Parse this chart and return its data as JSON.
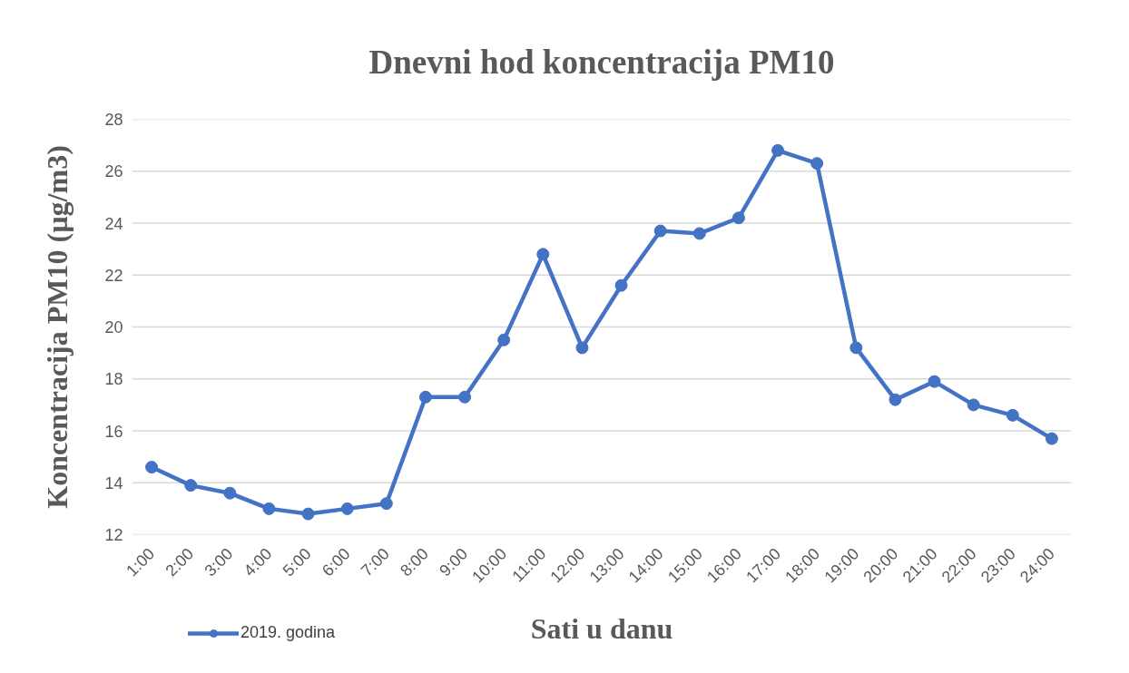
{
  "chart_data": {
    "type": "line",
    "title": "Dnevni hod koncentracija PM10",
    "xlabel": "Sati u danu",
    "ylabel": "Koncentracija PM10 (µg/m3)",
    "categories": [
      "1:00",
      "2:00",
      "3:00",
      "4:00",
      "5:00",
      "6:00",
      "7:00",
      "8:00",
      "9:00",
      "10:00",
      "11:00",
      "12:00",
      "13:00",
      "14:00",
      "15:00",
      "16:00",
      "17:00",
      "18:00",
      "19:00",
      "20:00",
      "21:00",
      "22:00",
      "23:00",
      "24:00"
    ],
    "series": [
      {
        "name": "2019. godina",
        "color": "#4472c4",
        "values": [
          14.6,
          13.9,
          13.6,
          13.0,
          12.8,
          13.0,
          13.2,
          17.3,
          17.3,
          19.5,
          22.8,
          19.2,
          21.6,
          23.7,
          23.6,
          24.2,
          26.8,
          26.3,
          19.2,
          17.2,
          17.9,
          17.0,
          16.6,
          15.7
        ]
      }
    ],
    "ylim": [
      12,
      28
    ],
    "yticks": [
      12,
      14,
      16,
      18,
      20,
      22,
      24,
      26,
      28
    ],
    "grid": "y",
    "legend": "bottom left",
    "marker": "circle",
    "line_style": "solid"
  }
}
